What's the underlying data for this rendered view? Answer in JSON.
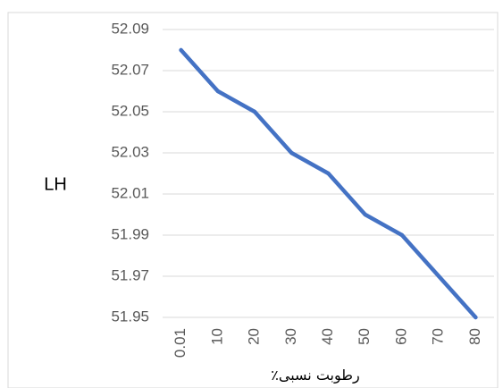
{
  "chart_data": {
    "type": "line",
    "xlabel": "رطوبت نسبی٪",
    "ylabel": "LH",
    "categories": [
      "0.01",
      "10",
      "20",
      "30",
      "40",
      "50",
      "60",
      "70",
      "80"
    ],
    "series": [
      {
        "values": [
          52.08,
          52.06,
          52.05,
          52.03,
          52.02,
          52.0,
          51.99,
          51.97,
          51.95
        ]
      }
    ],
    "ylim": [
      51.95,
      52.09
    ],
    "yticks": [
      "52.09",
      "52.07",
      "52.05",
      "52.03",
      "52.01",
      "51.99",
      "51.97",
      "51.95"
    ],
    "grid": true,
    "colors": {
      "line": "#4472C4",
      "grid": "#D9D9D9",
      "tick_text": "#595959"
    }
  }
}
